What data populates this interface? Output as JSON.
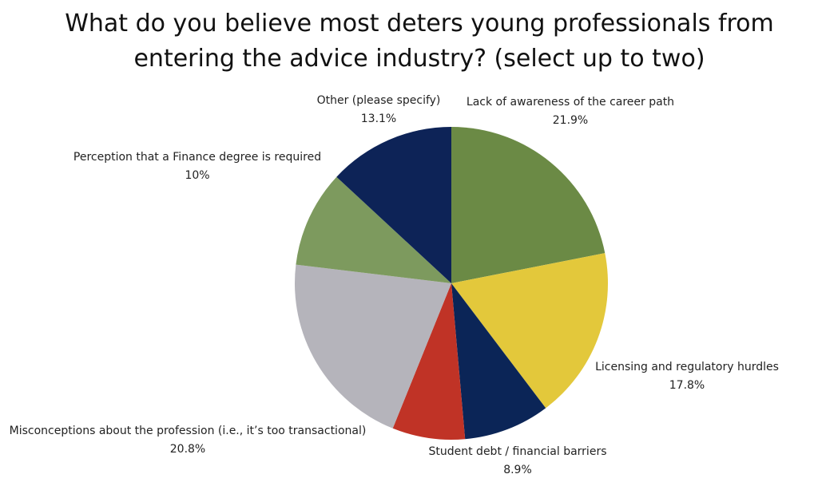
{
  "chart_data": {
    "type": "pie",
    "title": "What do you believe most deters young professionals from entering the advice industry? (select up to two)",
    "categories": [
      "Lack of awareness of the career path",
      "Licensing and regulatory hurdles",
      "Student debt / financial barriers",
      null,
      "Misconceptions about the profession (i.e., it’s too transactional)",
      "Perception that a Finance degree is required",
      "Other (please specify)"
    ],
    "values": [
      21.9,
      17.8,
      8.9,
      7.5,
      20.8,
      10,
      13.1
    ],
    "value_labels": [
      "21.9%",
      "17.8%",
      "8.9%",
      null,
      "20.8%",
      "10%",
      "13.1%"
    ],
    "colors": [
      "#6b8a45",
      "#e3c83b",
      "#0b2557",
      "#c03326",
      "#b5b4bb",
      "#7d9a5e",
      "#0d2357"
    ]
  }
}
